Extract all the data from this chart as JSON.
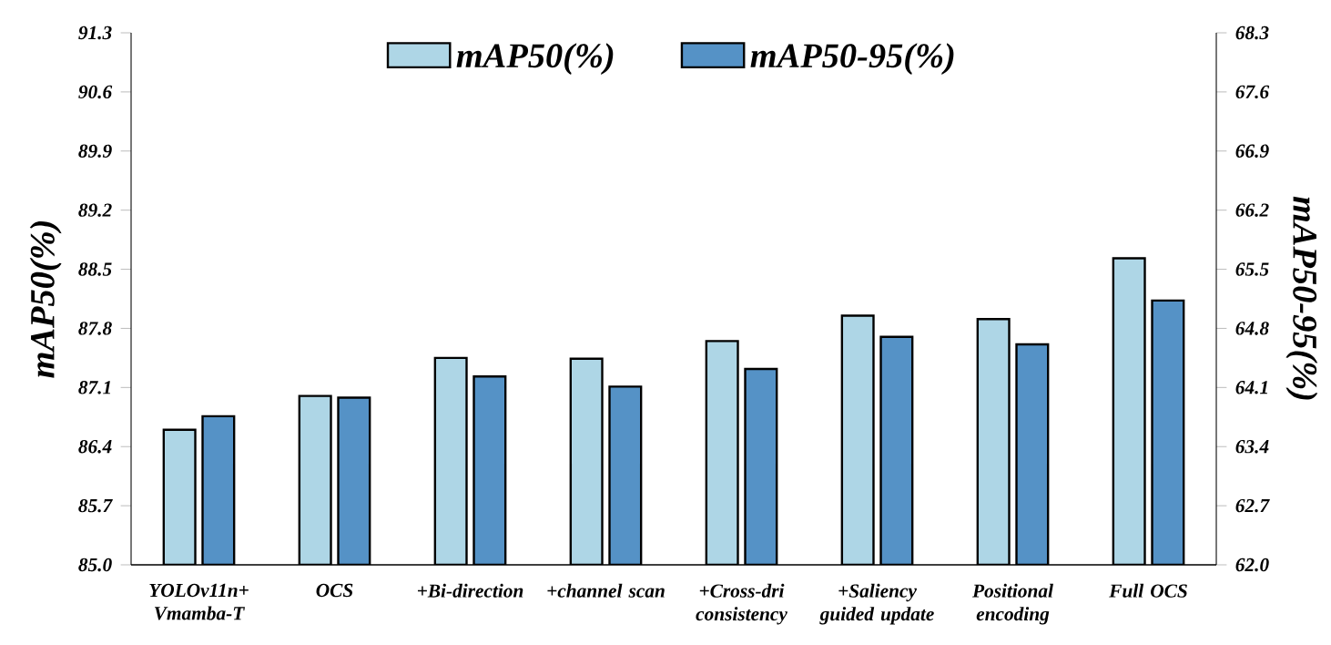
{
  "chart_data": {
    "type": "bar",
    "categories": [
      "YOLOv11n+ Vmamba-T",
      "OCS",
      "+Bi-direction",
      "+channel scan",
      "+Cross-dri consistency",
      "+Saliency guided update",
      "Positional encoding",
      "Full OCS"
    ],
    "series": [
      {
        "name": "mAP50(%)",
        "color": "#aed6e6",
        "axis": "y",
        "values": [
          86.6,
          87.0,
          87.45,
          87.44,
          87.65,
          87.95,
          87.91,
          88.63
        ]
      },
      {
        "name": "mAP50-95(%)",
        "color": "#5592c6",
        "axis": "y2",
        "values": [
          63.76,
          63.98,
          64.23,
          64.11,
          64.32,
          64.7,
          64.61,
          65.13
        ]
      }
    ],
    "ylabel": "mAP50(%)",
    "y2label": "mAP50-95(%)",
    "ylim": [
      85.0,
      91.3
    ],
    "yticks": [
      {
        "value": 85.0,
        "label": "85.0"
      },
      85.7,
      86.4,
      87.1,
      87.8,
      88.5,
      89.2,
      89.9,
      90.6,
      91.3
    ],
    "y2lim": [
      62.0,
      68.3
    ],
    "y2ticks": [
      {
        "value": 62.0,
        "label": "62.0"
      },
      62.7,
      63.4,
      64.1,
      64.8,
      65.5,
      66.2,
      66.9,
      67.6,
      68.3
    ],
    "legend": "top"
  }
}
